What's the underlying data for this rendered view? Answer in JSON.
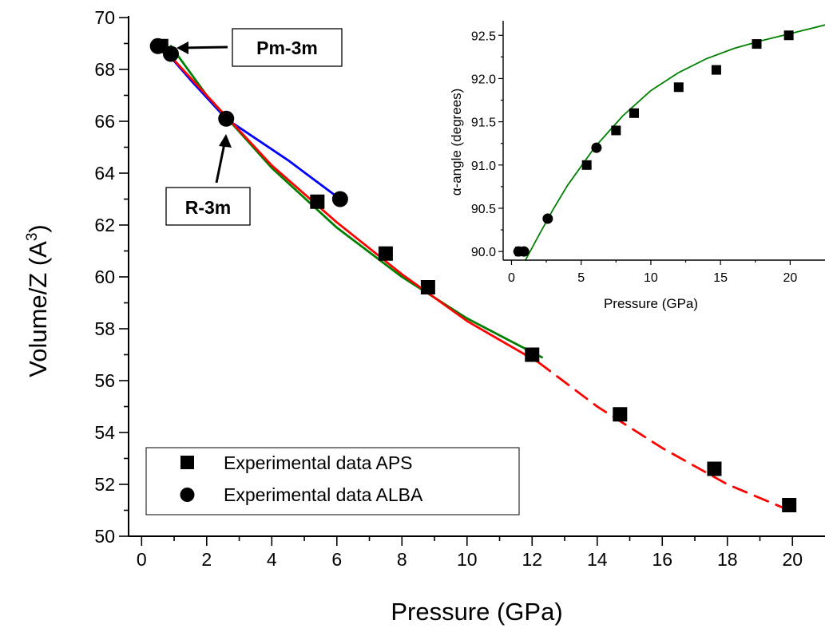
{
  "chart_data": [
    {
      "type": "scatter",
      "xlabel": "Pressure (GPa)",
      "ylabel": "Volume/Z (A3)",
      "ylabel_main": "Volume/Z (A",
      "ylabel_sup": "3",
      "ylabel_close": ")",
      "xlim": [
        -0.4,
        21
      ],
      "ylim": [
        50,
        70
      ],
      "xticks": [
        0,
        2,
        4,
        6,
        8,
        10,
        12,
        14,
        16,
        18,
        20
      ],
      "yticks": [
        50,
        52,
        54,
        56,
        58,
        60,
        62,
        64,
        66,
        68,
        70
      ],
      "legend_position": "bottom-left",
      "series": [
        {
          "name": "Experimental data APS",
          "marker": "square",
          "color": "#000000",
          "x": [
            0.6,
            5.4,
            7.5,
            8.8,
            12.0,
            14.7,
            17.6,
            19.9
          ],
          "y": [
            68.9,
            62.9,
            60.9,
            59.6,
            57.0,
            54.7,
            52.6,
            51.2
          ]
        },
        {
          "name": "Experimental data ALBA",
          "marker": "circle",
          "color": "#000000",
          "x": [
            0.5,
            0.9,
            2.6,
            6.1
          ],
          "y": [
            68.9,
            68.6,
            66.1,
            63.0
          ]
        }
      ],
      "fits": [
        {
          "color": "#0000ff",
          "style": "solid",
          "x": [
            0.6,
            1.5,
            2.6,
            4.5,
            6.1
          ],
          "y": [
            68.9,
            67.6,
            66.1,
            64.5,
            63.0
          ]
        },
        {
          "color": "#008000",
          "style": "solid",
          "x": [
            0.9,
            2.0,
            4.0,
            6.0,
            8.0,
            10.0,
            12.3
          ],
          "y": [
            68.9,
            67.0,
            64.2,
            61.9,
            60.0,
            58.4,
            56.9
          ]
        },
        {
          "color": "#ff0000",
          "style": "solid",
          "x": [
            0.6,
            2.0,
            4.0,
            6.0,
            8.0,
            10.0,
            12.2
          ],
          "y": [
            68.9,
            67.0,
            64.3,
            62.1,
            60.1,
            58.3,
            56.7
          ]
        },
        {
          "color": "#ff0000",
          "style": "dashed",
          "x": [
            12.2,
            14.0,
            16.0,
            18.0,
            19.9
          ],
          "y": [
            56.7,
            55.0,
            53.4,
            52.0,
            51.0
          ]
        }
      ],
      "annotations": [
        {
          "text": "Pm-3m",
          "x": 0.5,
          "y": 68.9
        },
        {
          "text": "R-3m",
          "x": 2.6,
          "y": 66.1
        }
      ]
    },
    {
      "type": "scatter",
      "xlabel": "Pressure (GPa)",
      "ylabel": "α-angle (degrees)",
      "xlim": [
        -0.6,
        22.5
      ],
      "ylim": [
        89.9,
        92.65
      ],
      "xticks": [
        0,
        5,
        10,
        15,
        20
      ],
      "yticks": [
        90.0,
        90.5,
        91.0,
        91.5,
        92.0,
        92.5
      ],
      "series": [
        {
          "name": "Experimental data APS",
          "marker": "square",
          "color": "#000000",
          "x": [
            0.6,
            5.4,
            7.5,
            8.8,
            12.0,
            14.7,
            17.6,
            19.9
          ],
          "y": [
            90.0,
            91.0,
            91.4,
            91.6,
            91.9,
            92.1,
            92.4,
            92.5
          ]
        },
        {
          "name": "Experimental data ALBA",
          "marker": "circle",
          "color": "#000000",
          "x": [
            0.5,
            0.9,
            2.6,
            6.1
          ],
          "y": [
            90.0,
            90.0,
            90.38,
            91.2
          ]
        }
      ],
      "fits": [
        {
          "color": "#008000",
          "style": "solid",
          "x": [
            1.0,
            2.0,
            3.0,
            4.0,
            6.0,
            8.0,
            10.0,
            12.0,
            14.0,
            16.0,
            18.0,
            20.0,
            22.5
          ],
          "y": [
            89.9,
            90.2,
            90.49,
            90.76,
            91.21,
            91.57,
            91.86,
            92.07,
            92.23,
            92.35,
            92.44,
            92.52,
            92.62
          ]
        }
      ]
    }
  ],
  "labels": {
    "pm3m": "Pm-3m",
    "r3m": "R-3m",
    "legend_aps": "Experimental data APS",
    "legend_alba": "Experimental data ALBA"
  }
}
